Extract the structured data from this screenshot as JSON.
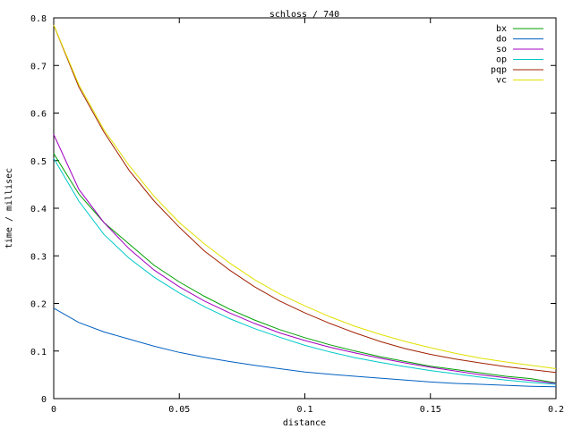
{
  "chart_data": {
    "type": "line",
    "title": "schloss / 740",
    "xlabel": "distance",
    "ylabel": "time / millisec",
    "xlim": [
      0,
      0.2
    ],
    "ylim": [
      0,
      0.8
    ],
    "x_ticks": [
      "0",
      "0.05",
      "0.1",
      "0.15",
      "0.2"
    ],
    "y_ticks": [
      "0",
      "0.1",
      "0.2",
      "0.3",
      "0.4",
      "0.5",
      "0.6",
      "0.7",
      "0.8"
    ],
    "grid": false,
    "legend_position": "top-right",
    "x": [
      0,
      0.01,
      0.02,
      0.03,
      0.04,
      0.05,
      0.06,
      0.07,
      0.08,
      0.09,
      0.1,
      0.11,
      0.12,
      0.13,
      0.14,
      0.15,
      0.16,
      0.17,
      0.18,
      0.19,
      0.2
    ],
    "series": [
      {
        "name": "bx",
        "color": "#00a000",
        "values": [
          0.515,
          0.43,
          0.37,
          0.325,
          0.28,
          0.245,
          0.215,
          0.188,
          0.165,
          0.145,
          0.128,
          0.113,
          0.1,
          0.088,
          0.078,
          0.068,
          0.061,
          0.054,
          0.047,
          0.042,
          0.033
        ]
      },
      {
        "name": "do",
        "color": "#0060c0",
        "values": [
          0.19,
          0.16,
          0.14,
          0.125,
          0.11,
          0.097,
          0.087,
          0.078,
          0.07,
          0.063,
          0.056,
          0.051,
          0.047,
          0.043,
          0.039,
          0.035,
          0.032,
          0.03,
          0.028,
          0.026,
          0.025
        ]
      },
      {
        "name": "so",
        "color": "#a000c0",
        "values": [
          0.555,
          0.44,
          0.37,
          0.315,
          0.27,
          0.235,
          0.205,
          0.18,
          0.158,
          0.138,
          0.122,
          0.108,
          0.096,
          0.085,
          0.075,
          0.066,
          0.058,
          0.05,
          0.044,
          0.038,
          0.032
        ]
      },
      {
        "name": "op",
        "color": "#00c8c8",
        "values": [
          0.505,
          0.415,
          0.345,
          0.295,
          0.255,
          0.222,
          0.193,
          0.168,
          0.147,
          0.129,
          0.112,
          0.098,
          0.086,
          0.076,
          0.067,
          0.059,
          0.052,
          0.045,
          0.039,
          0.034,
          0.03
        ]
      },
      {
        "name": "pqp",
        "color": "#a02000",
        "values": [
          0.785,
          0.655,
          0.56,
          0.48,
          0.415,
          0.36,
          0.31,
          0.27,
          0.235,
          0.205,
          0.18,
          0.158,
          0.138,
          0.12,
          0.105,
          0.093,
          0.083,
          0.075,
          0.067,
          0.061,
          0.055
        ]
      },
      {
        "name": "vc",
        "color": "#e0e000",
        "values": [
          0.785,
          0.66,
          0.565,
          0.49,
          0.425,
          0.37,
          0.325,
          0.285,
          0.25,
          0.22,
          0.195,
          0.172,
          0.152,
          0.135,
          0.12,
          0.107,
          0.095,
          0.085,
          0.077,
          0.07,
          0.063
        ]
      }
    ]
  }
}
